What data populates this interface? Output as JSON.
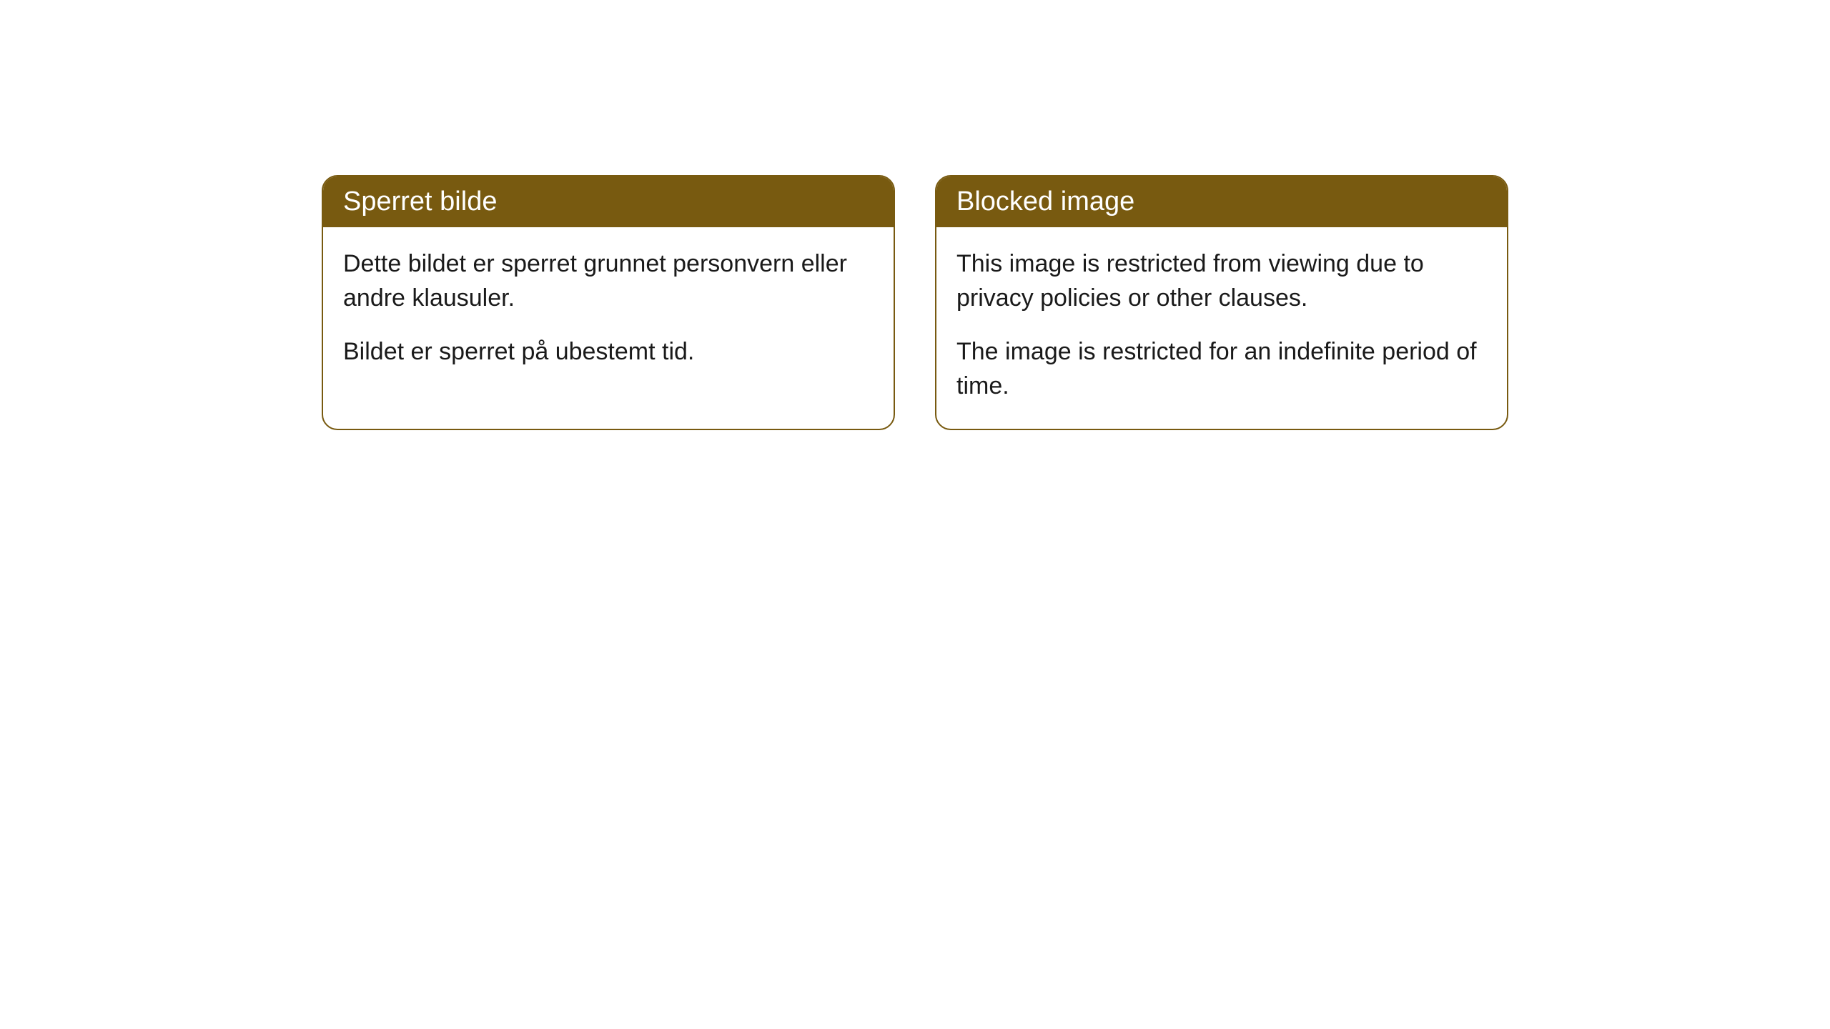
{
  "cards": [
    {
      "title": "Sperret bilde",
      "paragraph1": "Dette bildet er sperret grunnet personvern eller andre klausuler.",
      "paragraph2": "Bildet er sperret på ubestemt tid."
    },
    {
      "title": "Blocked image",
      "paragraph1": "This image is restricted from viewing due to privacy policies or other clauses.",
      "paragraph2": "The image is restricted for an indefinite period of time."
    }
  ],
  "styling": {
    "header_background": "#785a10",
    "header_text_color": "#ffffff",
    "border_color": "#785a10",
    "body_background": "#ffffff",
    "body_text_color": "#1a1a1a",
    "border_radius": 22,
    "header_font_size": 38,
    "body_font_size": 34
  }
}
